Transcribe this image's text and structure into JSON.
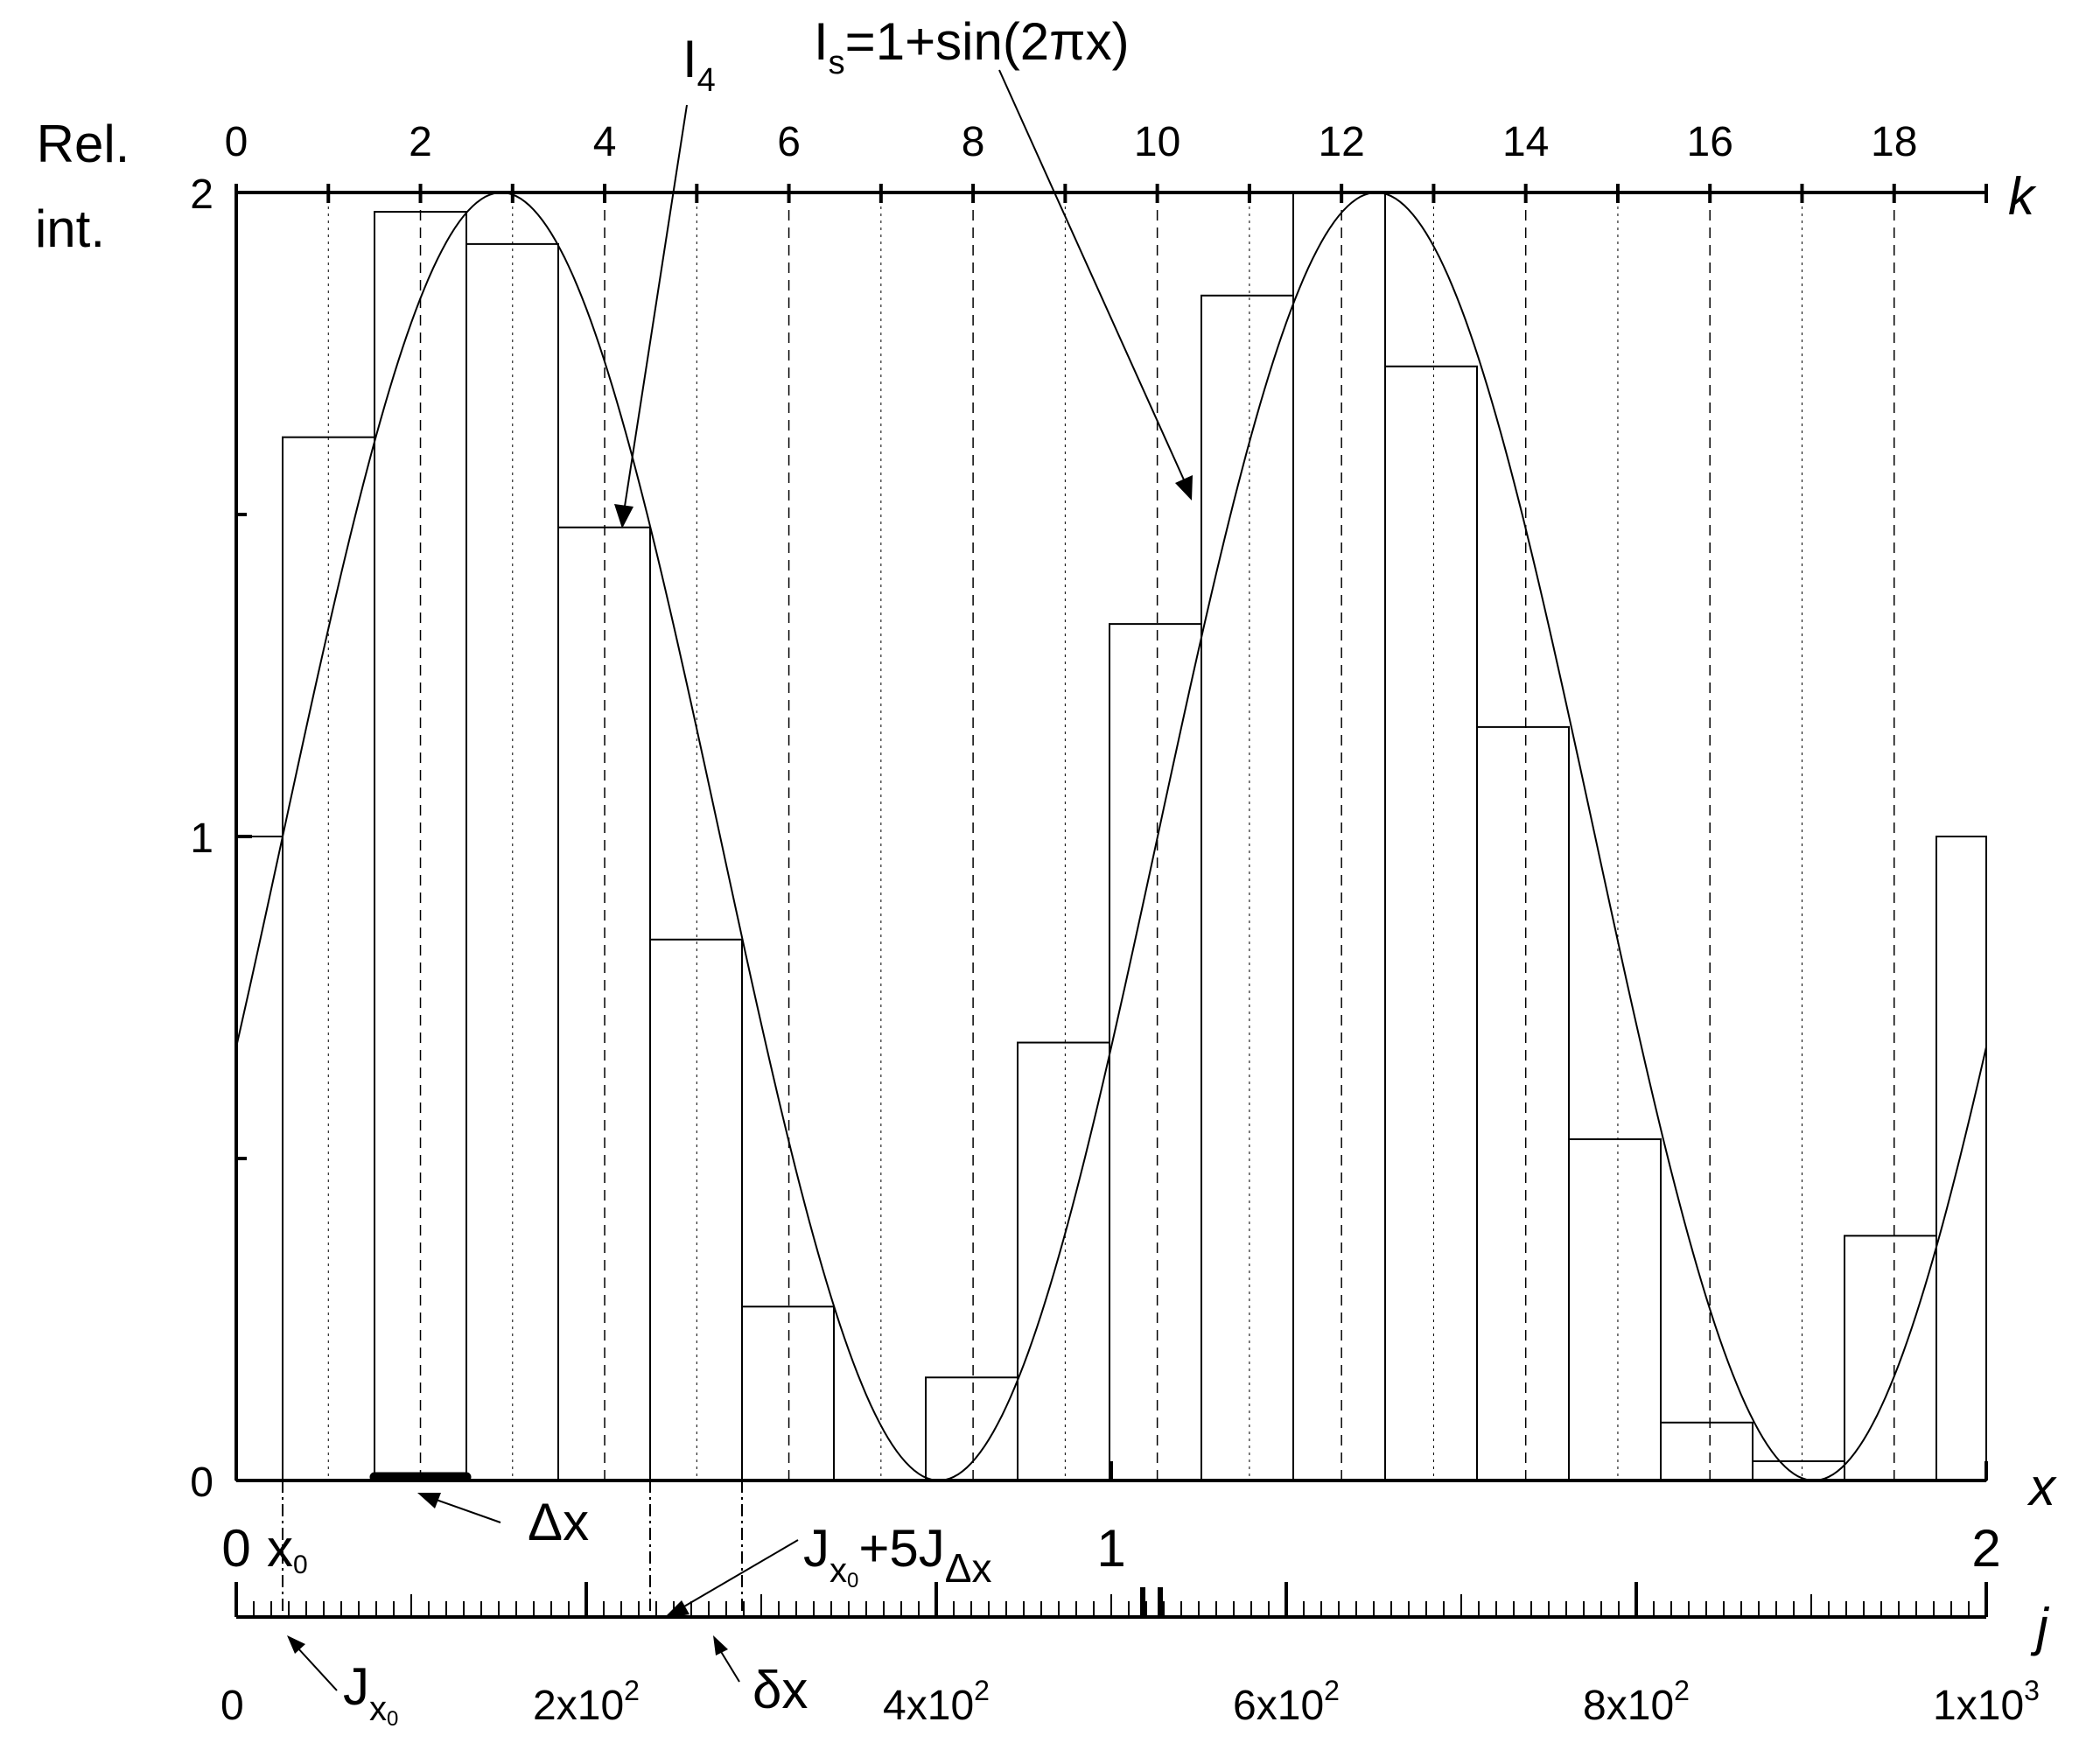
{
  "chart_data": {
    "type": "bar",
    "title": "",
    "ylabel_line1": "Rel.",
    "ylabel_line2": "int.",
    "x_axis": {
      "name": "x",
      "range": [
        0,
        2
      ],
      "ticks": [
        0,
        1,
        2
      ],
      "tick_labels": [
        "0",
        "1",
        "2"
      ]
    },
    "k_axis": {
      "name": "k",
      "range": [
        0,
        19
      ],
      "ticks": [
        0,
        2,
        4,
        6,
        8,
        10,
        12,
        14,
        16,
        18
      ],
      "tick_labels": [
        "0",
        "2",
        "4",
        "6",
        "8",
        "10",
        "12",
        "14",
        "16",
        "18"
      ]
    },
    "j_axis": {
      "name": "j",
      "range": [
        0,
        1000
      ],
      "major_ticks": [
        0,
        200,
        400,
        600,
        800,
        1000
      ],
      "tick_labels": [
        "0",
        "2x10",
        "4x10",
        "6x10",
        "8x10",
        "1x10"
      ],
      "tick_exponents": [
        "",
        "2",
        "2",
        "2",
        "2",
        "3"
      ],
      "minor_step": 10
    },
    "y_axis": {
      "range": [
        0,
        2
      ],
      "ticks": [
        0,
        0.5,
        1,
        1.5,
        2
      ],
      "tick_labels": [
        "0",
        "",
        "1",
        "",
        "2"
      ]
    },
    "x0": 0.053,
    "delta_x": 0.105,
    "delta_x_start": 0.158,
    "bars": {
      "k": [
        0,
        1,
        2,
        3,
        4,
        5,
        6,
        7,
        8,
        9,
        10,
        11,
        12,
        13,
        14,
        15,
        16,
        17,
        18,
        19
      ],
      "values": [
        1.0,
        1.62,
        1.97,
        1.92,
        1.48,
        0.84,
        0.27,
        0.0,
        0.16,
        0.68,
        1.33,
        1.84,
        2.0,
        1.73,
        1.17,
        0.53,
        0.09,
        0.03,
        0.38,
        1.0
      ]
    },
    "curve": {
      "name": "I_s=1+sin(2πx)",
      "formula": "1+sin(2*pi*(x-x0))"
    },
    "annotations": {
      "i4": {
        "main": "I",
        "sub": "4"
      },
      "is_formula": {
        "main": "I",
        "sub": "s",
        "rest": "=1+sin(2πx)"
      },
      "x0_label": {
        "main": "x",
        "sub": "0"
      },
      "delta_x_label": "Δx",
      "jx0_label": {
        "main": "J",
        "sub": "x",
        "subsub": "0"
      },
      "jx0_5jdx_label": {
        "main": "J",
        "sub": "x",
        "subsub": "0",
        "rest": "+5J",
        "sub2": "Δx"
      },
      "small_dx_label": "δx"
    }
  }
}
